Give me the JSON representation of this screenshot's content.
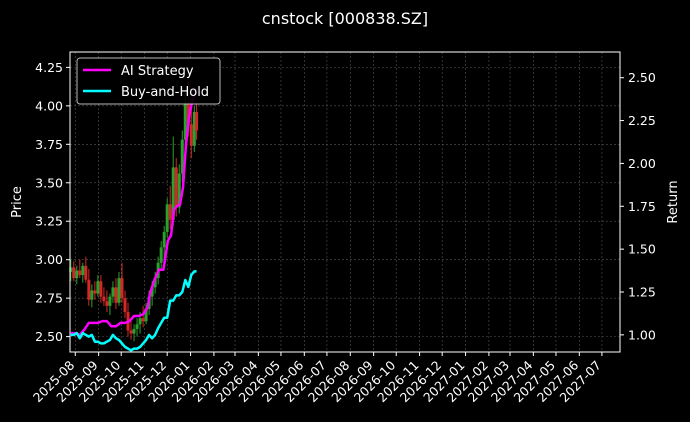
{
  "colors": {
    "background": "#000000",
    "grid": "#555555",
    "candle_up": "#2ca02c",
    "candle_down": "#d62728",
    "ai_strategy": "#ff00ff",
    "buy_and_hold": "#00ffff"
  },
  "chart_data": {
    "type": "line",
    "title": "cnstock [000838.SZ]",
    "xlabel": "",
    "ylabel": "Price",
    "y2label": "Return",
    "grid": true,
    "legend_placement": "top-left",
    "xlim": [
      "2025-07-25",
      "2027-07-25"
    ],
    "ylim": [
      2.4,
      4.35
    ],
    "y2lim": [
      0.9,
      2.65
    ],
    "x_ticks": [
      "2025-08",
      "2025-09",
      "2025-10",
      "2025-11",
      "2025-12",
      "2026-01",
      "2026-02",
      "2026-03",
      "2026-04",
      "2026-05",
      "2026-06",
      "2026-07",
      "2026-08",
      "2026-09",
      "2026-10",
      "2026-11",
      "2026-12",
      "2027-01",
      "2027-02",
      "2027-03",
      "2027-04",
      "2027-05",
      "2027-06",
      "2027-07"
    ],
    "y_ticks": [
      "2.50",
      "2.75",
      "3.00",
      "3.25",
      "3.50",
      "3.75",
      "4.00",
      "4.25"
    ],
    "y2_ticks": [
      "1.00",
      "1.25",
      "1.50",
      "1.75",
      "2.00",
      "2.25",
      "2.50"
    ],
    "candles": [
      {
        "x": "2025-07-26",
        "o": 2.92,
        "h": 3.0,
        "l": 2.86,
        "c": 2.95
      },
      {
        "x": "2025-07-30",
        "o": 2.95,
        "h": 2.99,
        "l": 2.86,
        "c": 2.88
      },
      {
        "x": "2025-08-03",
        "o": 2.88,
        "h": 2.96,
        "l": 2.84,
        "c": 2.93
      },
      {
        "x": "2025-08-07",
        "o": 2.93,
        "h": 3.0,
        "l": 2.88,
        "c": 2.9
      },
      {
        "x": "2025-08-11",
        "o": 2.9,
        "h": 2.98,
        "l": 2.85,
        "c": 2.96
      },
      {
        "x": "2025-08-15",
        "o": 2.96,
        "h": 3.02,
        "l": 2.85,
        "c": 2.87
      },
      {
        "x": "2025-08-19",
        "o": 2.87,
        "h": 2.94,
        "l": 2.7,
        "c": 2.74
      },
      {
        "x": "2025-08-23",
        "o": 2.74,
        "h": 2.84,
        "l": 2.69,
        "c": 2.8
      },
      {
        "x": "2025-08-27",
        "o": 2.8,
        "h": 2.86,
        "l": 2.74,
        "c": 2.78
      },
      {
        "x": "2025-08-31",
        "o": 2.78,
        "h": 2.9,
        "l": 2.76,
        "c": 2.86
      },
      {
        "x": "2025-09-04",
        "o": 2.86,
        "h": 2.9,
        "l": 2.72,
        "c": 2.76
      },
      {
        "x": "2025-09-08",
        "o": 2.76,
        "h": 2.82,
        "l": 2.7,
        "c": 2.73
      },
      {
        "x": "2025-09-12",
        "o": 2.73,
        "h": 2.8,
        "l": 2.66,
        "c": 2.7
      },
      {
        "x": "2025-09-16",
        "o": 2.7,
        "h": 2.78,
        "l": 2.64,
        "c": 2.76
      },
      {
        "x": "2025-09-20",
        "o": 2.76,
        "h": 2.86,
        "l": 2.72,
        "c": 2.82
      },
      {
        "x": "2025-09-24",
        "o": 2.82,
        "h": 2.88,
        "l": 2.68,
        "c": 2.72
      },
      {
        "x": "2025-09-28",
        "o": 2.72,
        "h": 2.92,
        "l": 2.7,
        "c": 2.88
      },
      {
        "x": "2025-10-02",
        "o": 2.88,
        "h": 2.98,
        "l": 2.72,
        "c": 2.75
      },
      {
        "x": "2025-10-06",
        "o": 2.75,
        "h": 2.8,
        "l": 2.62,
        "c": 2.66
      },
      {
        "x": "2025-10-10",
        "o": 2.66,
        "h": 2.72,
        "l": 2.5,
        "c": 2.54
      },
      {
        "x": "2025-10-14",
        "o": 2.54,
        "h": 2.6,
        "l": 2.48,
        "c": 2.52
      },
      {
        "x": "2025-10-18",
        "o": 2.52,
        "h": 2.58,
        "l": 2.47,
        "c": 2.55
      },
      {
        "x": "2025-10-22",
        "o": 2.55,
        "h": 2.62,
        "l": 2.5,
        "c": 2.58
      },
      {
        "x": "2025-10-26",
        "o": 2.58,
        "h": 2.66,
        "l": 2.52,
        "c": 2.62
      },
      {
        "x": "2025-10-30",
        "o": 2.62,
        "h": 2.7,
        "l": 2.56,
        "c": 2.6
      },
      {
        "x": "2025-11-03",
        "o": 2.6,
        "h": 2.72,
        "l": 2.58,
        "c": 2.68
      },
      {
        "x": "2025-11-07",
        "o": 2.68,
        "h": 2.8,
        "l": 2.64,
        "c": 2.76
      },
      {
        "x": "2025-11-11",
        "o": 2.76,
        "h": 2.86,
        "l": 2.7,
        "c": 2.82
      },
      {
        "x": "2025-11-15",
        "o": 2.82,
        "h": 2.92,
        "l": 2.78,
        "c": 2.88
      },
      {
        "x": "2025-11-19",
        "o": 2.88,
        "h": 3.02,
        "l": 2.84,
        "c": 2.98
      },
      {
        "x": "2025-11-23",
        "o": 2.98,
        "h": 3.12,
        "l": 2.94,
        "c": 3.08
      },
      {
        "x": "2025-11-27",
        "o": 3.08,
        "h": 3.22,
        "l": 3.0,
        "c": 3.18
      },
      {
        "x": "2025-12-01",
        "o": 3.18,
        "h": 3.4,
        "l": 3.14,
        "c": 3.36
      },
      {
        "x": "2025-12-05",
        "o": 3.36,
        "h": 3.48,
        "l": 3.2,
        "c": 3.26
      },
      {
        "x": "2025-12-09",
        "o": 3.26,
        "h": 3.8,
        "l": 3.22,
        "c": 3.6
      },
      {
        "x": "2025-12-13",
        "o": 3.6,
        "h": 3.66,
        "l": 3.28,
        "c": 3.34
      },
      {
        "x": "2025-12-17",
        "o": 3.34,
        "h": 3.62,
        "l": 3.3,
        "c": 3.56
      },
      {
        "x": "2025-12-21",
        "o": 3.56,
        "h": 3.84,
        "l": 3.5,
        "c": 3.78
      },
      {
        "x": "2025-12-25",
        "o": 3.78,
        "h": 4.1,
        "l": 3.7,
        "c": 4.02
      },
      {
        "x": "2025-12-29",
        "o": 4.02,
        "h": 4.25,
        "l": 3.8,
        "c": 3.88
      },
      {
        "x": "2026-01-02",
        "o": 3.88,
        "h": 4.05,
        "l": 3.66,
        "c": 3.74
      },
      {
        "x": "2026-01-06",
        "o": 3.74,
        "h": 4.0,
        "l": 3.7,
        "c": 3.96
      },
      {
        "x": "2026-01-09",
        "o": 3.96,
        "h": 4.02,
        "l": 3.78,
        "c": 3.84
      }
    ],
    "series": [
      {
        "name": "AI Strategy",
        "color": "#ff00ff",
        "axis": "right",
        "x": [
          "2025-07-26",
          "2025-08-01",
          "2025-08-07",
          "2025-08-13",
          "2025-08-19",
          "2025-08-25",
          "2025-08-31",
          "2025-09-06",
          "2025-09-12",
          "2025-09-18",
          "2025-09-24",
          "2025-09-30",
          "2025-10-06",
          "2025-10-12",
          "2025-10-18",
          "2025-10-24",
          "2025-10-30",
          "2025-11-05",
          "2025-11-08",
          "2025-11-14",
          "2025-11-20",
          "2025-11-26",
          "2025-12-02",
          "2025-12-06",
          "2025-12-10",
          "2025-12-14",
          "2025-12-18",
          "2025-12-22",
          "2025-12-26",
          "2025-12-30",
          "2026-01-03",
          "2026-01-09"
        ],
        "values": [
          1.01,
          1.01,
          1.0,
          1.03,
          1.07,
          1.07,
          1.07,
          1.08,
          1.08,
          1.05,
          1.05,
          1.07,
          1.07,
          1.08,
          1.11,
          1.11,
          1.12,
          1.16,
          1.24,
          1.32,
          1.38,
          1.38,
          1.55,
          1.58,
          1.73,
          1.75,
          1.76,
          1.86,
          2.11,
          2.27,
          2.36,
          2.44
        ]
      },
      {
        "name": "Buy-and-Hold",
        "color": "#00ffff",
        "axis": "right",
        "x": [
          "2025-07-26",
          "2025-07-30",
          "2025-08-03",
          "2025-08-07",
          "2025-08-11",
          "2025-08-15",
          "2025-08-19",
          "2025-08-23",
          "2025-08-27",
          "2025-08-31",
          "2025-09-04",
          "2025-09-08",
          "2025-09-12",
          "2025-09-16",
          "2025-09-20",
          "2025-09-24",
          "2025-09-28",
          "2025-10-02",
          "2025-10-06",
          "2025-10-10",
          "2025-10-14",
          "2025-10-18",
          "2025-10-22",
          "2025-10-26",
          "2025-10-30",
          "2025-11-03",
          "2025-11-07",
          "2025-11-11",
          "2025-11-15",
          "2025-11-19",
          "2025-11-23",
          "2025-11-27",
          "2025-12-01",
          "2025-12-05",
          "2025-12-09",
          "2025-12-13",
          "2025-12-17",
          "2025-12-21",
          "2025-12-25",
          "2025-12-29",
          "2026-01-02",
          "2026-01-06",
          "2026-01-09"
        ],
        "values": [
          1.0,
          1.0,
          1.01,
          0.98,
          1.01,
          1.0,
          0.99,
          1.0,
          0.96,
          0.96,
          0.95,
          0.95,
          0.96,
          0.97,
          1.0,
          0.98,
          0.97,
          0.95,
          0.93,
          0.92,
          0.91,
          0.92,
          0.92,
          0.93,
          0.95,
          0.97,
          1.0,
          0.98,
          1.0,
          1.04,
          1.07,
          1.1,
          1.1,
          1.2,
          1.2,
          1.23,
          1.23,
          1.25,
          1.32,
          1.28,
          1.35,
          1.37,
          1.37
        ]
      }
    ]
  }
}
